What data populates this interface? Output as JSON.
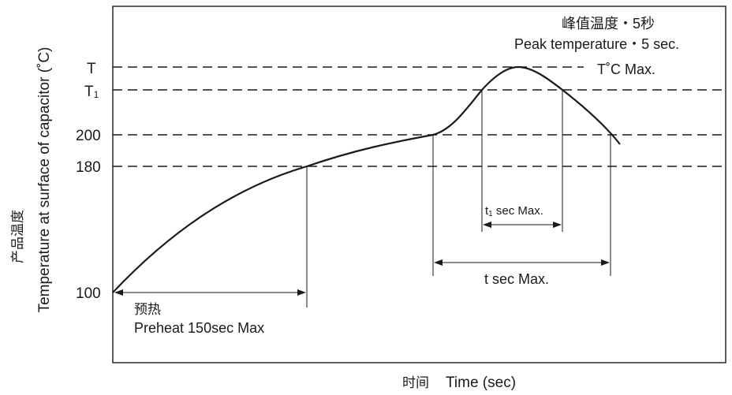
{
  "y_axis": {
    "label_cn": "产品温度",
    "label_en": "Temperature at surface of capacitor (˚C)",
    "ticks": {
      "T": "T",
      "T1_main": "T",
      "T1_sub": "1",
      "t200": "200",
      "t180": "180",
      "t100": "100"
    }
  },
  "x_axis": {
    "label_cn": "时间",
    "label_en": "Time (sec)"
  },
  "annotations": {
    "peak_cn": "峰值温度・5秒",
    "peak_en": "Peak temperature・5 sec.",
    "tmax": "T˚C Max.",
    "t1_main": "t",
    "t1_sub": "1",
    "t1_rest": " sec Max.",
    "t_sec": "t sec Max.",
    "preheat_cn": "预热",
    "preheat_en": "Preheat 150sec Max"
  }
}
